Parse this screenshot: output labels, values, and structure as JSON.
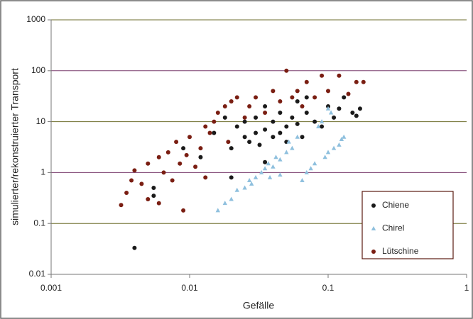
{
  "chart_data": {
    "type": "scatter",
    "xlabel": "Gefälle",
    "ylabel": "simulierter/rekonstruierter Transport",
    "xscale": "log",
    "yscale": "log",
    "xlim": [
      0.001,
      1
    ],
    "ylim": [
      0.01,
      1000
    ],
    "xticks": [
      0.001,
      0.01,
      0.1,
      1
    ],
    "yticks": [
      0.01,
      0.1,
      1,
      10,
      100,
      1000
    ],
    "grid": true,
    "legend": "lower right",
    "series": [
      {
        "name": "Chiene",
        "color": "#1a1a1a",
        "marker": "circle",
        "x": [
          0.004,
          0.0055,
          0.0055,
          0.009,
          0.012,
          0.015,
          0.02,
          0.02,
          0.022,
          0.025,
          0.027,
          0.03,
          0.03,
          0.032,
          0.035,
          0.035,
          0.04,
          0.04,
          0.045,
          0.045,
          0.05,
          0.05,
          0.055,
          0.06,
          0.06,
          0.065,
          0.07,
          0.07,
          0.08,
          0.09,
          0.1,
          0.11,
          0.12,
          0.13,
          0.15,
          0.16,
          0.17,
          0.035,
          0.025,
          0.018
        ],
        "values": [
          0.033,
          0.35,
          0.5,
          3,
          2,
          6,
          3,
          0.8,
          8,
          5,
          4,
          6,
          12,
          3.5,
          7,
          20,
          5,
          10,
          6,
          15,
          8,
          4,
          12,
          9,
          25,
          5,
          15,
          30,
          10,
          8,
          20,
          12,
          18,
          30,
          15,
          13,
          18,
          1.6,
          10,
          12
        ]
      },
      {
        "name": "Chirel",
        "color": "#8fc0de",
        "marker": "triangle",
        "x": [
          0.016,
          0.018,
          0.02,
          0.022,
          0.025,
          0.027,
          0.03,
          0.033,
          0.035,
          0.037,
          0.04,
          0.042,
          0.045,
          0.05,
          0.052,
          0.055,
          0.06,
          0.065,
          0.07,
          0.075,
          0.08,
          0.085,
          0.09,
          0.095,
          0.1,
          0.1,
          0.11,
          0.12,
          0.125,
          0.13,
          0.105,
          0.045,
          0.038,
          0.028
        ],
        "values": [
          0.18,
          0.25,
          0.3,
          0.45,
          0.5,
          0.7,
          0.8,
          1.0,
          1.2,
          1.5,
          1.3,
          2,
          1.8,
          2.5,
          4,
          3,
          5,
          0.7,
          1.0,
          1.2,
          1.5,
          8,
          10,
          2,
          2.5,
          18,
          3,
          3.5,
          4.5,
          5,
          15,
          0.9,
          0.8,
          0.6
        ]
      },
      {
        "name": "Lütschine",
        "color": "#7a1e12",
        "marker": "circle",
        "x": [
          0.0032,
          0.0035,
          0.0038,
          0.004,
          0.0045,
          0.005,
          0.005,
          0.006,
          0.0065,
          0.007,
          0.0075,
          0.008,
          0.0085,
          0.009,
          0.0095,
          0.01,
          0.011,
          0.012,
          0.013,
          0.014,
          0.015,
          0.016,
          0.018,
          0.02,
          0.022,
          0.025,
          0.027,
          0.03,
          0.035,
          0.04,
          0.045,
          0.05,
          0.055,
          0.06,
          0.065,
          0.07,
          0.08,
          0.09,
          0.1,
          0.12,
          0.14,
          0.16,
          0.18,
          0.013,
          0.019,
          0.006
        ],
        "values": [
          0.23,
          0.4,
          0.7,
          1.1,
          0.6,
          0.3,
          1.5,
          2,
          1,
          2.5,
          0.7,
          4,
          1.5,
          0.18,
          2.2,
          5,
          1.3,
          3,
          8,
          6,
          10,
          15,
          20,
          25,
          30,
          12,
          20,
          30,
          15,
          40,
          25,
          100,
          30,
          40,
          20,
          60,
          30,
          80,
          40,
          80,
          35,
          60,
          60,
          0.8,
          4,
          0.25
        ]
      }
    ]
  }
}
